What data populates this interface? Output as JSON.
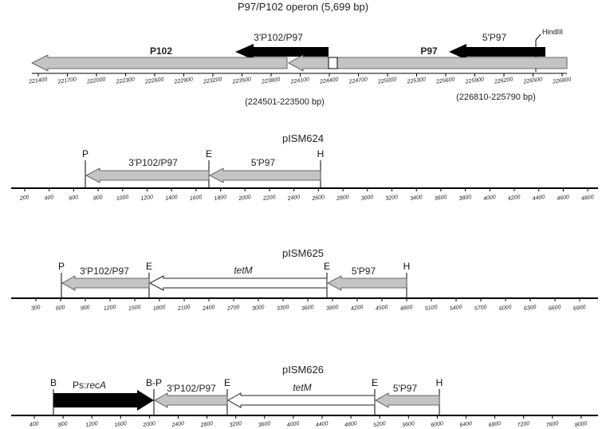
{
  "colors": {
    "gray": "#c4c4c4",
    "black": "#000000",
    "white": "#ffffff",
    "stroke": "#444444"
  },
  "panel1": {
    "title": "P97/P102 operon (5,699 bp)",
    "genes": {
      "p102": "P102",
      "p97": "P97"
    },
    "probes": {
      "three_prime": "3'P102/P97",
      "five_prime": "5'P97"
    },
    "site_label": "HindIII",
    "ticks": [
      "221400",
      "221700",
      "222000",
      "222300",
      "222600",
      "222900",
      "223200",
      "223500",
      "223800",
      "224100",
      "224400",
      "224700",
      "225000",
      "225300",
      "225600",
      "225900",
      "226200",
      "226500",
      "226800"
    ],
    "coord_left": "(224501-223500 bp)",
    "coord_right": "(226810-225790 bp)"
  },
  "panel2": {
    "title": "pISM624",
    "sites": {
      "p": "P",
      "e": "E",
      "h": "H"
    },
    "segments": {
      "three_prime": "3'P102/P97",
      "five_prime": "5'P97"
    },
    "ticks": [
      "200",
      "400",
      "600",
      "800",
      "1000",
      "1200",
      "1400",
      "1600",
      "1800",
      "2000",
      "2200",
      "2400",
      "2600",
      "2800",
      "3000",
      "3200",
      "3400",
      "3600",
      "3800",
      "4000",
      "4200",
      "4400",
      "4600",
      "4800"
    ]
  },
  "panel3": {
    "title": "pISM625",
    "sites": {
      "p": "P",
      "e1": "E",
      "e2": "E",
      "h": "H"
    },
    "segments": {
      "three_prime": "3'P102/P97",
      "tetm": "tetM",
      "five_prime": "5'P97"
    },
    "ticks": [
      "300",
      "600",
      "900",
      "1200",
      "1500",
      "1800",
      "2100",
      "2400",
      "2700",
      "3000",
      "3300",
      "3600",
      "3900",
      "4200",
      "4500",
      "4800",
      "5100",
      "5400",
      "5700",
      "6000",
      "6300",
      "6600",
      "6900"
    ]
  },
  "panel4": {
    "title": "pISM626",
    "sites": {
      "b": "B",
      "bp": "B-P",
      "e1": "E",
      "e2": "E",
      "h": "H"
    },
    "segments": {
      "recA_prefix": "Ps:",
      "recA": "recA",
      "three_prime": "3'P102/P97",
      "tetm": "tetM",
      "five_prime": "5'P97"
    },
    "ticks": [
      "400",
      "800",
      "1200",
      "1600",
      "2000",
      "2400",
      "2800",
      "3200",
      "3600",
      "4000",
      "4400",
      "4800",
      "5200",
      "5600",
      "6000",
      "6400",
      "6800",
      "7200",
      "7600",
      "8000"
    ]
  }
}
